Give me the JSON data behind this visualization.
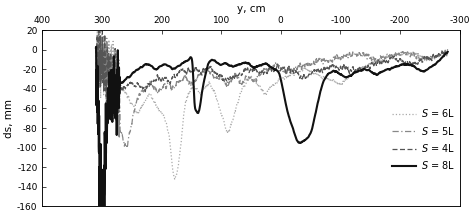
{
  "title": "y, cm",
  "ylabel": "ds, mm",
  "xlim": [
    400,
    -300
  ],
  "ylim": [
    -160,
    20
  ],
  "xticks": [
    400,
    300,
    200,
    100,
    0,
    -100,
    -200,
    -300
  ],
  "yticks": [
    20,
    0,
    -20,
    -40,
    -60,
    -80,
    -100,
    -120,
    -140,
    -160
  ],
  "legend": [
    {
      "label": "$S$ = 4L",
      "color": "#555555",
      "lw": 0.9,
      "ls": "--"
    },
    {
      "label": "$S$ = 5L",
      "color": "#888888",
      "lw": 0.9,
      "ls": "--"
    },
    {
      "label": "$S$ = 6L",
      "color": "#aaaaaa",
      "lw": 0.9,
      "ls": ":"
    },
    {
      "label": "$S$ = 8L",
      "color": "#111111",
      "lw": 1.5,
      "ls": "-"
    }
  ],
  "s4l_x": [
    310,
    308,
    305,
    302,
    300,
    298,
    295,
    293,
    290,
    287,
    285,
    282,
    280,
    277,
    275,
    270,
    265,
    260,
    255,
    250,
    245,
    240,
    235,
    230,
    225,
    220,
    215,
    210,
    205,
    200,
    195,
    190,
    185,
    180,
    175,
    170,
    165,
    160,
    155,
    150,
    145,
    140,
    135,
    130,
    125,
    120,
    115,
    110,
    105,
    100,
    90,
    80,
    70,
    60,
    50,
    40,
    30,
    20,
    10,
    0,
    -10,
    -20,
    -30,
    -40,
    -50,
    -60,
    -70,
    -80,
    -90,
    -100,
    -110,
    -120,
    -130,
    -140,
    -150,
    -160,
    -170,
    -180,
    -190,
    -200,
    -210,
    -220,
    -230,
    -240,
    -250,
    -260,
    -270,
    -280
  ],
  "s4l_y": [
    -5,
    -10,
    -5,
    -10,
    -8,
    -15,
    -20,
    -25,
    -30,
    -35,
    -40,
    -45,
    -35,
    -40,
    -38,
    -35,
    -40,
    -38,
    -35,
    -33,
    -38,
    -35,
    -38,
    -40,
    -38,
    -35,
    -32,
    -30,
    -28,
    -30,
    -28,
    -32,
    -30,
    -28,
    -25,
    -22,
    -20,
    -22,
    -20,
    -22,
    -20,
    -22,
    -25,
    -22,
    -20,
    -18,
    -20,
    -22,
    -25,
    -28,
    -30,
    -28,
    -25,
    -22,
    -20,
    -22,
    -25,
    -22,
    -20,
    -18,
    -20,
    -22,
    -25,
    -28,
    -25,
    -22,
    -20,
    -18,
    -16,
    -18,
    -20,
    -22,
    -20,
    -18,
    -16,
    -14,
    -12,
    -10,
    -8,
    -10,
    -12,
    -14,
    -12,
    -10,
    -8,
    -6,
    -4,
    -2
  ],
  "s5l_x": [
    308,
    305,
    302,
    300,
    297,
    294,
    291,
    288,
    285,
    282,
    279,
    276,
    273,
    270,
    265,
    260,
    255,
    250,
    245,
    240,
    235,
    230,
    225,
    220,
    215,
    210,
    205,
    200,
    195,
    190,
    185,
    180,
    175,
    170,
    165,
    160,
    155,
    150,
    145,
    140,
    135,
    130,
    125,
    120,
    115,
    110,
    105,
    100,
    95,
    90,
    85,
    80,
    75,
    70,
    65,
    60,
    55,
    50,
    45,
    40,
    35,
    30,
    25,
    20,
    10,
    0,
    -10,
    -20,
    -30,
    -40,
    -50,
    -60,
    -70,
    -80,
    -90,
    -100,
    -110,
    -120,
    -130,
    -140,
    -150,
    -160,
    -170,
    -180,
    -190,
    -200,
    -210,
    -220,
    -230,
    -240,
    -250,
    -260,
    -270,
    -280
  ],
  "s5l_y": [
    -5,
    -8,
    -10,
    -8,
    -12,
    -15,
    -20,
    -25,
    -30,
    -40,
    -50,
    -60,
    -70,
    -80,
    -90,
    -100,
    -90,
    -75,
    -60,
    -50,
    -45,
    -40,
    -38,
    -36,
    -38,
    -40,
    -42,
    -40,
    -38,
    -36,
    -38,
    -40,
    -35,
    -32,
    -30,
    -28,
    -32,
    -35,
    -32,
    -28,
    -25,
    -22,
    -20,
    -22,
    -25,
    -28,
    -30,
    -28,
    -32,
    -35,
    -32,
    -28,
    -25,
    -30,
    -35,
    -30,
    -28,
    -30,
    -32,
    -28,
    -25,
    -22,
    -20,
    -18,
    -16,
    -18,
    -22,
    -20,
    -18,
    -16,
    -14,
    -12,
    -10,
    -12,
    -10,
    -8,
    -6,
    -5,
    -4,
    -5,
    -8,
    -10,
    -8,
    -6,
    -5,
    -4,
    -3,
    -5,
    -8,
    -10,
    -8,
    -6,
    -4,
    -2
  ],
  "s6l_x": [
    308,
    305,
    300,
    295,
    290,
    285,
    280,
    275,
    270,
    265,
    260,
    255,
    250,
    245,
    240,
    235,
    230,
    225,
    220,
    215,
    210,
    205,
    200,
    195,
    190,
    185,
    180,
    175,
    170,
    165,
    160,
    155,
    150,
    145,
    140,
    135,
    130,
    125,
    120,
    115,
    110,
    105,
    100,
    95,
    90,
    85,
    80,
    75,
    70,
    65,
    60,
    55,
    50,
    45,
    40,
    35,
    30,
    25,
    20,
    10,
    0,
    -10,
    -20,
    -30,
    -40,
    -50,
    -60,
    -70,
    -80,
    -90,
    -100,
    -110,
    -120,
    -130,
    -140,
    -150,
    -160,
    -170,
    -180,
    -190,
    -200,
    -210,
    -220,
    -230,
    -240,
    -250,
    -260,
    -270,
    -280
  ],
  "s6l_y": [
    -5,
    -8,
    -10,
    -12,
    -15,
    -20,
    -25,
    -30,
    -35,
    -40,
    -45,
    -50,
    -55,
    -60,
    -65,
    -60,
    -55,
    -50,
    -45,
    -50,
    -55,
    -60,
    -65,
    -70,
    -80,
    -100,
    -128,
    -128,
    -110,
    -80,
    -55,
    -45,
    -40,
    -38,
    -40,
    -45,
    -40,
    -38,
    -35,
    -40,
    -45,
    -55,
    -65,
    -75,
    -85,
    -80,
    -70,
    -60,
    -50,
    -40,
    -35,
    -30,
    -28,
    -32,
    -35,
    -38,
    -42,
    -45,
    -40,
    -35,
    -30,
    -28,
    -25,
    -22,
    -20,
    -22,
    -25,
    -28,
    -30,
    -32,
    -35,
    -30,
    -25,
    -20,
    -18,
    -15,
    -12,
    -10,
    -8,
    -6,
    -5,
    -4,
    -3,
    -5,
    -8,
    -10,
    -8,
    -5,
    -3
  ],
  "s8l_x": [
    310,
    308,
    305,
    302,
    300,
    297,
    294,
    291,
    288,
    285,
    282,
    280,
    278,
    275,
    272,
    270,
    265,
    260,
    255,
    250,
    245,
    240,
    235,
    230,
    225,
    220,
    215,
    210,
    205,
    200,
    195,
    190,
    185,
    180,
    175,
    170,
    165,
    160,
    155,
    150,
    148,
    145,
    142,
    140,
    135,
    130,
    125,
    122,
    120,
    115,
    110,
    105,
    100,
    95,
    90,
    85,
    80,
    75,
    70,
    65,
    60,
    55,
    50,
    45,
    40,
    35,
    30,
    25,
    20,
    15,
    10,
    5,
    0,
    -5,
    -10,
    -20,
    -30,
    -40,
    -50,
    -60,
    -70,
    -80,
    -90,
    -100,
    -110,
    -120,
    -130,
    -140,
    -150,
    -160,
    -170,
    -180,
    -190,
    -200,
    -210,
    -220,
    -230,
    -240,
    -250,
    -260,
    -270,
    -280
  ],
  "s8l_y": [
    -5,
    -50,
    -100,
    -140,
    -145,
    -130,
    -100,
    -70,
    -50,
    -40,
    -38,
    -36,
    -38,
    -40,
    -38,
    -35,
    -33,
    -30,
    -28,
    -25,
    -22,
    -20,
    -18,
    -16,
    -15,
    -16,
    -18,
    -20,
    -18,
    -16,
    -15,
    -16,
    -18,
    -20,
    -18,
    -16,
    -14,
    -12,
    -10,
    -8,
    -15,
    -55,
    -62,
    -65,
    -55,
    -35,
    -22,
    -14,
    -12,
    -10,
    -12,
    -14,
    -15,
    -14,
    -15,
    -16,
    -17,
    -16,
    -15,
    -14,
    -13,
    -14,
    -16,
    -18,
    -17,
    -16,
    -15,
    -14,
    -16,
    -18,
    -20,
    -22,
    -30,
    -45,
    -60,
    -80,
    -95,
    -92,
    -85,
    -60,
    -35,
    -25,
    -22,
    -25,
    -28,
    -25,
    -22,
    -20,
    -22,
    -25,
    -22,
    -20,
    -18,
    -16,
    -15,
    -16,
    -20,
    -22,
    -18,
    -14,
    -8,
    -3
  ],
  "background_color": "#ffffff"
}
